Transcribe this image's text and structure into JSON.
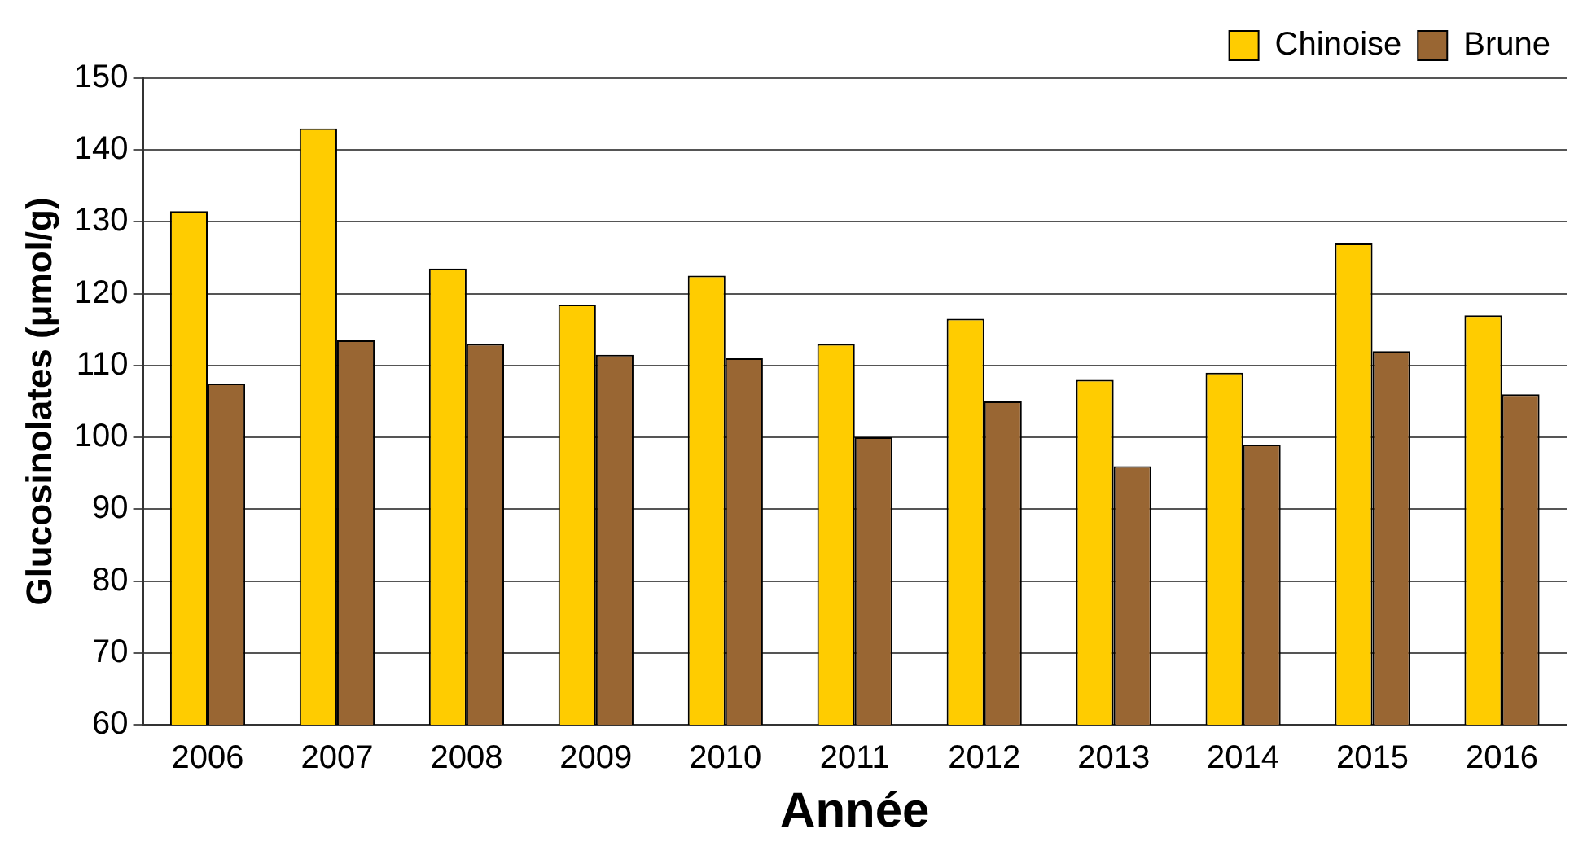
{
  "chart_data": {
    "type": "bar",
    "xlabel": "Année",
    "ylabel": "Glucosinolates (μmol/g)",
    "categories": [
      "2006",
      "2007",
      "2008",
      "2009",
      "2010",
      "2011",
      "2012",
      "2013",
      "2014",
      "2015",
      "2016"
    ],
    "series": [
      {
        "name": "Chinoise",
        "color": "#ffcc00",
        "values": [
          131.5,
          143,
          123.5,
          118.5,
          122.5,
          113,
          116.5,
          108,
          109,
          127,
          117
        ]
      },
      {
        "name": "Brune",
        "color": "#996633",
        "values": [
          107.5,
          113.5,
          113,
          111.5,
          111,
          100,
          105,
          96,
          99,
          112,
          106
        ]
      }
    ],
    "ylim": [
      60,
      150
    ],
    "yticks": [
      60,
      70,
      80,
      90,
      100,
      110,
      120,
      130,
      140,
      150
    ],
    "grid": "y",
    "legend": "top right"
  }
}
